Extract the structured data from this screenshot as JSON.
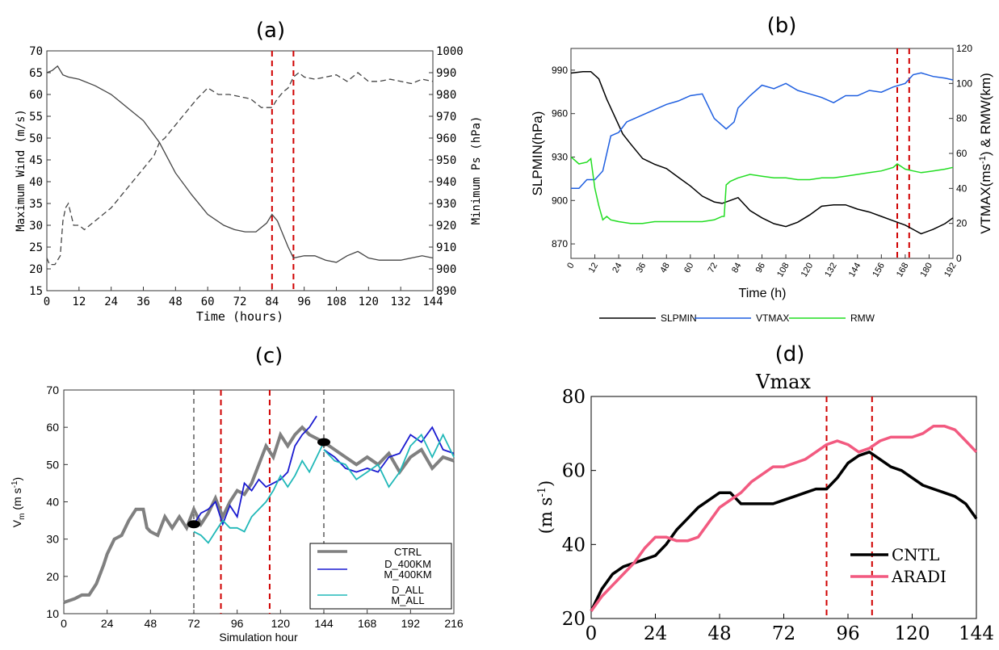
{
  "chart_data": [
    {
      "panel_label": "(a)",
      "type": "line",
      "xlabel": "Time (hours)",
      "ylabel": "Maximum Wind (m/s)",
      "y2label": "Minimum Ps (hPa)",
      "xlim": [
        0,
        144
      ],
      "ylim": [
        15,
        70
      ],
      "y2lim": [
        890,
        1000
      ],
      "xticks": [
        "0",
        "12",
        "24",
        "36",
        "48",
        "60",
        "72",
        "84",
        "96",
        "108",
        "120",
        "132",
        "144"
      ],
      "yticks": [
        "15",
        "20",
        "25",
        "30",
        "35",
        "40",
        "45",
        "50",
        "55",
        "60",
        "65",
        "70"
      ],
      "y2ticks": [
        "890",
        "900",
        "910",
        "920",
        "930",
        "940",
        "950",
        "960",
        "970",
        "980",
        "990",
        "1000"
      ],
      "vlines": [
        84,
        92
      ],
      "series": [
        {
          "name": "Maximum Wind",
          "axis": "left",
          "style": "solid",
          "x": [
            0,
            2,
            4,
            6,
            8,
            12,
            18,
            24,
            30,
            36,
            42,
            48,
            54,
            60,
            66,
            70,
            74,
            78,
            82,
            84,
            86,
            88,
            90,
            92,
            96,
            100,
            104,
            108,
            112,
            116,
            120,
            124,
            128,
            132,
            136,
            140,
            144
          ],
          "y": [
            65,
            65.5,
            66.5,
            64.5,
            64,
            63.5,
            62,
            60,
            57,
            54,
            49,
            42,
            37,
            32.5,
            30,
            29,
            28.5,
            28.5,
            30.5,
            32.5,
            31,
            28,
            25,
            22.5,
            23,
            23,
            22,
            21.5,
            23,
            24,
            22.5,
            22,
            22,
            22,
            22.5,
            23,
            22.5
          ]
        },
        {
          "name": "Minimum Ps",
          "axis": "right",
          "style": "dashed",
          "x": [
            0,
            1,
            3,
            5,
            6,
            7,
            8,
            10,
            12,
            14,
            16,
            18,
            20,
            24,
            28,
            32,
            36,
            40,
            42,
            44,
            48,
            52,
            56,
            60,
            64,
            68,
            72,
            76,
            80,
            84,
            86,
            88,
            90,
            92,
            94,
            96,
            100,
            104,
            108,
            112,
            116,
            120,
            124,
            128,
            132,
            136,
            140,
            144
          ],
          "y": [
            905,
            902,
            902,
            906,
            922,
            928,
            930,
            920,
            920,
            918,
            920,
            922,
            924,
            928,
            934,
            940,
            946,
            952,
            958,
            960,
            966,
            972,
            978,
            983,
            980,
            980,
            979,
            978,
            974,
            974,
            978,
            981,
            983,
            988,
            990,
            988,
            987,
            988,
            989,
            986,
            990,
            986,
            986,
            987,
            986,
            985,
            987,
            986
          ]
        }
      ]
    },
    {
      "panel_label": "(b)",
      "type": "line",
      "xlabel": "Time (h)",
      "ylabel": "SLPMIN(hPa)",
      "y2label_parts": [
        "VTMAX(ms",
        "-1",
        ") & RMW(km)"
      ],
      "xlim": [
        0,
        192
      ],
      "ylim": [
        860,
        1005
      ],
      "y2lim": [
        0,
        120
      ],
      "xticks": [
        "0",
        "12",
        "24",
        "36",
        "48",
        "60",
        "72",
        "84",
        "96",
        "108",
        "120",
        "132",
        "144",
        "156",
        "168",
        "180",
        "192"
      ],
      "yticks": [
        "870",
        "900",
        "930",
        "960",
        "990"
      ],
      "y2ticks": [
        "0",
        "20",
        "40",
        "60",
        "80",
        "100",
        "120"
      ],
      "vlines": [
        164,
        170
      ],
      "legend": [
        "SLPMIN",
        "VTMAX",
        "RMW"
      ],
      "series": [
        {
          "name": "SLPMIN",
          "axis": "left",
          "color": "#000000",
          "x": [
            0,
            6,
            10,
            14,
            18,
            22,
            26,
            30,
            36,
            42,
            48,
            54,
            60,
            66,
            72,
            76,
            80,
            84,
            90,
            96,
            102,
            108,
            114,
            120,
            126,
            132,
            138,
            144,
            150,
            156,
            162,
            168,
            172,
            176,
            182,
            188,
            192
          ],
          "y": [
            988,
            989,
            989,
            984,
            970,
            958,
            946,
            939,
            929,
            925,
            922,
            916,
            910,
            903,
            899,
            898,
            900,
            902,
            893,
            888,
            884,
            882,
            885,
            890,
            896,
            897,
            897,
            894,
            892,
            889,
            886,
            883,
            880,
            877,
            880,
            884,
            888
          ]
        },
        {
          "name": "VTMAX",
          "axis": "right",
          "color": "#1f5fe0",
          "x": [
            0,
            4,
            8,
            12,
            16,
            20,
            24,
            28,
            32,
            36,
            42,
            48,
            54,
            60,
            66,
            72,
            78,
            82,
            84,
            90,
            96,
            102,
            108,
            114,
            120,
            126,
            132,
            138,
            144,
            150,
            156,
            162,
            168,
            172,
            176,
            182,
            188,
            192
          ],
          "y": [
            40,
            40,
            45,
            45,
            50,
            70,
            72,
            78,
            80,
            82,
            85,
            88,
            90,
            93,
            94,
            80,
            74,
            78,
            86,
            93,
            99,
            97,
            100,
            96,
            94,
            92,
            89,
            93,
            93,
            96,
            95,
            98,
            100,
            105,
            106,
            104,
            103,
            102
          ]
        },
        {
          "name": "RMW",
          "axis": "right",
          "color": "#22dd22",
          "x": [
            0,
            4,
            8,
            10,
            12,
            14,
            16,
            18,
            20,
            24,
            30,
            36,
            42,
            48,
            54,
            60,
            66,
            72,
            76,
            77,
            78,
            80,
            84,
            90,
            96,
            102,
            108,
            114,
            120,
            126,
            132,
            138,
            144,
            150,
            156,
            162,
            164,
            168,
            172,
            176,
            182,
            188,
            192
          ],
          "y": [
            58,
            54,
            55,
            57,
            40,
            30,
            22,
            24,
            22,
            21,
            20,
            20,
            21,
            21,
            21,
            21,
            21,
            22,
            24,
            24,
            42,
            44,
            46,
            48,
            47,
            46,
            46,
            45,
            45,
            46,
            46,
            47,
            48,
            49,
            50,
            52,
            54,
            51,
            50,
            49,
            50,
            51,
            52
          ]
        }
      ]
    },
    {
      "panel_label": "(c)",
      "type": "line",
      "xlabel": "Simulation hour",
      "ylabel_parts": [
        "V",
        "m",
        " (m s",
        "-1",
        ")"
      ],
      "xlim": [
        0,
        216
      ],
      "ylim": [
        10,
        70
      ],
      "xticks": [
        "0",
        "24",
        "48",
        "72",
        "96",
        "120",
        "144",
        "168",
        "192",
        "216"
      ],
      "yticks": [
        "10",
        "20",
        "30",
        "40",
        "50",
        "60",
        "70"
      ],
      "vlines_black": [
        72,
        144
      ],
      "vlines_red": [
        87,
        114
      ],
      "markers": [
        {
          "x": 72,
          "y": 34
        },
        {
          "x": 144,
          "y": 56
        }
      ],
      "legend": [
        {
          "label": "CTRL",
          "color": "#808080"
        },
        {
          "label": "D_400KM",
          "color": "#1a1ad0"
        },
        {
          "label": "M_400KM",
          "color": "#1a1ad0"
        },
        {
          "label": "D_ALL",
          "color": "#20b8b8"
        },
        {
          "label": "M_ALL",
          "color": "#20b8b8"
        }
      ],
      "series": [
        {
          "name": "CTRL",
          "color": "#808080",
          "x": [
            0,
            6,
            10,
            14,
            18,
            22,
            24,
            28,
            32,
            36,
            40,
            44,
            46,
            48,
            52,
            56,
            60,
            64,
            68,
            72,
            76,
            80,
            84,
            88,
            92,
            96,
            100,
            104,
            108,
            112,
            116,
            120,
            124,
            128,
            132,
            136,
            140,
            144,
            150,
            156,
            162,
            168,
            174,
            180,
            186,
            192,
            198,
            204,
            210,
            216
          ],
          "y": [
            13,
            14,
            15,
            15,
            18,
            23,
            26,
            30,
            31,
            35,
            38,
            38,
            33,
            32,
            31,
            36,
            33,
            36,
            33,
            38,
            34,
            37,
            41,
            36,
            40,
            43,
            42,
            45,
            50,
            55,
            52,
            58,
            55,
            58,
            60,
            58,
            57,
            56,
            54,
            52,
            50,
            52,
            50,
            53,
            48,
            52,
            54,
            49,
            52,
            51
          ]
        },
        {
          "name": "D_400KM",
          "color": "#1a1ad0",
          "x": [
            72,
            76,
            80,
            84,
            88,
            92,
            96,
            100,
            104,
            108,
            112,
            116,
            120,
            124,
            128,
            132,
            136,
            140
          ],
          "y": [
            34,
            37,
            38,
            40,
            34,
            39,
            36,
            45,
            43,
            46,
            44,
            45,
            46,
            48,
            55,
            58,
            60,
            63
          ]
        },
        {
          "name": "M_400KM",
          "color": "#1a1ad0",
          "x": [
            144,
            150,
            156,
            162,
            168,
            174,
            180,
            186,
            192,
            198,
            204,
            210,
            216
          ],
          "y": [
            54,
            52,
            49,
            48,
            49,
            48,
            52,
            53,
            58,
            56,
            60,
            54,
            53
          ]
        },
        {
          "name": "D_ALL",
          "color": "#20b8b8",
          "x": [
            72,
            76,
            80,
            84,
            88,
            92,
            96,
            100,
            104,
            108,
            112,
            116,
            120,
            124,
            128,
            132,
            136,
            140,
            144
          ],
          "y": [
            32,
            31,
            29,
            32,
            35,
            33,
            33,
            32,
            36,
            38,
            40,
            43,
            47,
            44,
            47,
            51,
            48,
            52,
            56
          ]
        },
        {
          "name": "M_ALL",
          "color": "#20b8b8",
          "x": [
            144,
            150,
            156,
            162,
            168,
            174,
            180,
            186,
            192,
            198,
            204,
            210,
            216
          ],
          "y": [
            54,
            51,
            50,
            46,
            48,
            50,
            44,
            48,
            55,
            58,
            52,
            58,
            52
          ]
        }
      ]
    },
    {
      "panel_label": "(d)",
      "type": "line",
      "title": "Vmax",
      "xlabel": "",
      "ylabel_parts": [
        "(m s",
        "-1",
        ")"
      ],
      "xlim": [
        0,
        144
      ],
      "ylim": [
        20,
        80
      ],
      "xticks": [
        "0",
        "24",
        "48",
        "72",
        "96",
        "120",
        "144"
      ],
      "yticks": [
        "20",
        "40",
        "60",
        "80"
      ],
      "vlines": [
        88,
        105
      ],
      "legend": [
        {
          "label": "CNTL",
          "color": "#000000"
        },
        {
          "label": "ARADI",
          "color": "#f25a80"
        }
      ],
      "series": [
        {
          "name": "CNTL",
          "color": "#000000",
          "x": [
            0,
            4,
            8,
            12,
            16,
            20,
            24,
            28,
            32,
            36,
            40,
            44,
            48,
            52,
            56,
            60,
            64,
            68,
            72,
            76,
            80,
            84,
            88,
            92,
            96,
            100,
            104,
            108,
            112,
            116,
            120,
            124,
            128,
            132,
            136,
            140,
            144
          ],
          "y": [
            22,
            28,
            32,
            34,
            35,
            36,
            37,
            40,
            44,
            47,
            50,
            52,
            54,
            54,
            51,
            51,
            51,
            51,
            52,
            53,
            54,
            55,
            55,
            58,
            62,
            64,
            65,
            63,
            61,
            60,
            58,
            56,
            55,
            54,
            53,
            51,
            47
          ]
        },
        {
          "name": "ARADI",
          "color": "#f25a80",
          "x": [
            0,
            4,
            8,
            12,
            16,
            20,
            24,
            28,
            32,
            36,
            40,
            44,
            48,
            52,
            56,
            60,
            64,
            68,
            72,
            76,
            80,
            84,
            88,
            92,
            96,
            100,
            104,
            108,
            112,
            116,
            120,
            124,
            128,
            132,
            136,
            140,
            144
          ],
          "y": [
            22,
            26,
            29,
            32,
            35,
            39,
            42,
            42,
            41,
            41,
            42,
            46,
            50,
            52,
            54,
            57,
            59,
            61,
            61,
            62,
            63,
            65,
            67,
            68,
            67,
            65,
            66,
            68,
            69,
            69,
            69,
            70,
            72,
            72,
            71,
            68,
            65
          ]
        }
      ]
    }
  ]
}
